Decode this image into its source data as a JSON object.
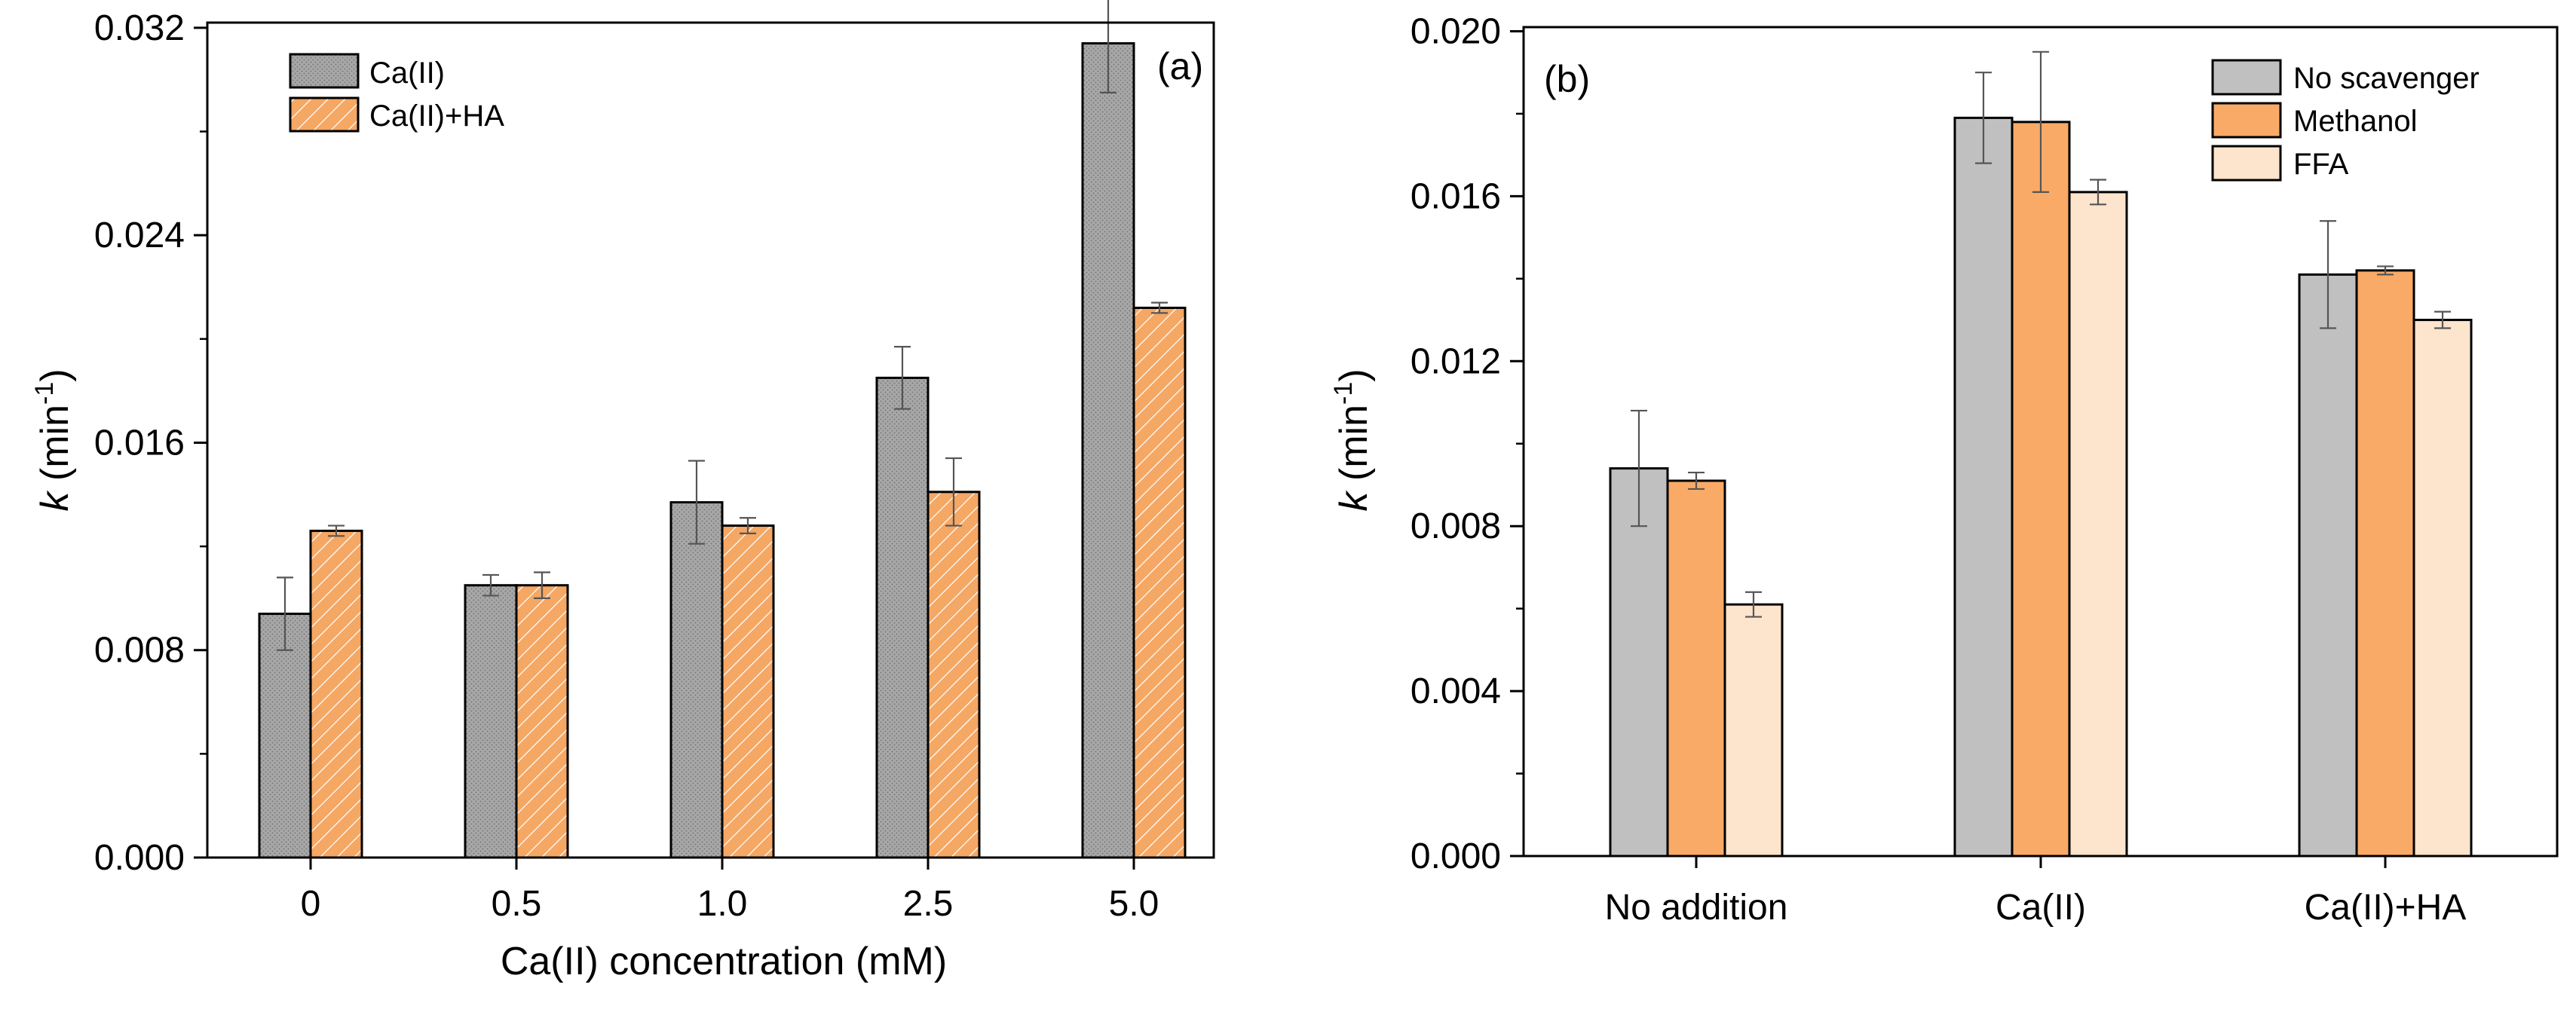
{
  "colors": {
    "ca_fill": "#a8a8a8",
    "ca_dot": "#7a7a7a",
    "caha_fill": "#f5a764",
    "caha_hatch": "#ffffff",
    "no_scavenger": "#c0c0c0",
    "methanol": "#f9aa66",
    "ffa": "#fde4cc"
  },
  "chart_data": [
    {
      "type": "bar",
      "panel_label": "(a)",
      "title": "",
      "xlabel": "Ca(II) concentration (mM)",
      "ylabel_main": "k",
      "ylabel_unit": " (min",
      "ylabel_exp": "-1",
      "ylabel_close": ")",
      "categories": [
        "0",
        "0.5",
        "1.0",
        "2.5",
        "5.0"
      ],
      "ylim": [
        0,
        0.0322
      ],
      "yticks": [
        "0.000",
        "0.008",
        "0.016",
        "0.024",
        "0.032"
      ],
      "ytick_values": [
        0,
        0.008,
        0.016,
        0.024,
        0.032
      ],
      "legend_position": "top-left",
      "series": [
        {
          "name": "Ca(II)",
          "values": [
            0.0094,
            0.0105,
            0.0137,
            0.0185,
            0.0314
          ],
          "errors": [
            0.0014,
            0.0004,
            0.0016,
            0.0012,
            0.0019
          ]
        },
        {
          "name": "Ca(II)+HA",
          "values": [
            0.0126,
            0.0105,
            0.0128,
            0.0141,
            0.0212
          ],
          "errors": [
            0.0002,
            0.0005,
            0.0003,
            0.0013,
            0.0002
          ]
        }
      ]
    },
    {
      "type": "bar",
      "panel_label": "(b)",
      "title": "",
      "xlabel": "",
      "ylabel_main": "k",
      "ylabel_unit": " (min",
      "ylabel_exp": "-1",
      "ylabel_close": ")",
      "categories": [
        "No addition",
        "Ca(II)",
        "Ca(II)+HA"
      ],
      "ylim": [
        0,
        0.0201
      ],
      "yticks": [
        "0.000",
        "0.004",
        "0.008",
        "0.012",
        "0.016",
        "0.020"
      ],
      "ytick_values": [
        0,
        0.004,
        0.008,
        0.012,
        0.016,
        0.02
      ],
      "legend_position": "top-right",
      "series": [
        {
          "name": "No scavenger",
          "values": [
            0.0094,
            0.0179,
            0.0141
          ],
          "errors": [
            0.0014,
            0.0011,
            0.0013
          ]
        },
        {
          "name": "Methanol",
          "values": [
            0.0091,
            0.0178,
            0.0142
          ],
          "errors": [
            0.0002,
            0.0017,
            0.0001
          ]
        },
        {
          "name": "FFA",
          "values": [
            0.0061,
            0.0161,
            0.013
          ],
          "errors": [
            0.0003,
            0.0003,
            0.0002
          ]
        }
      ]
    }
  ]
}
